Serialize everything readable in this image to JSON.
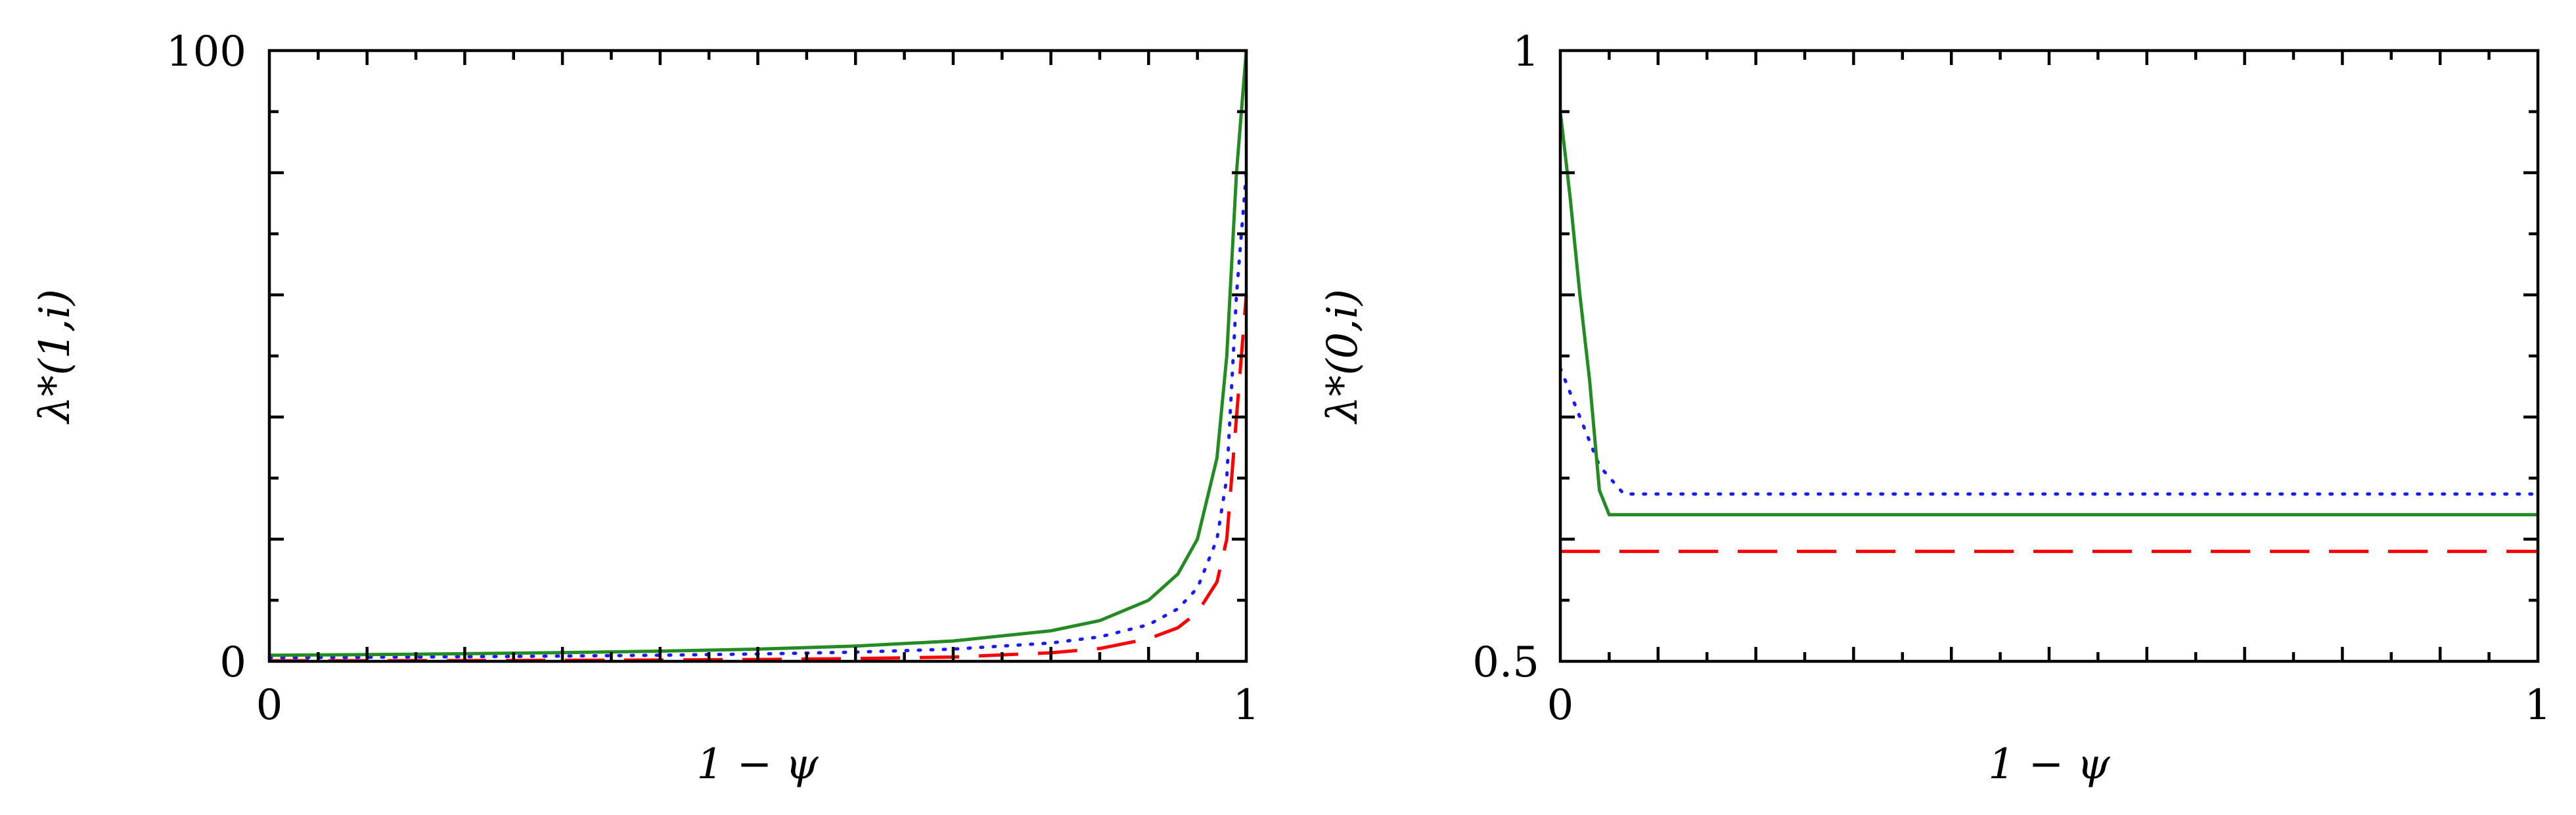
{
  "chart_data": [
    {
      "type": "line",
      "title": "",
      "xlabel": "1 − ψ",
      "ylabel": "λ*(1,i)",
      "xlim": [
        0,
        1
      ],
      "ylim": [
        0,
        100
      ],
      "x_ticks": [
        "0",
        "1"
      ],
      "y_ticks": [
        "0",
        "100"
      ],
      "grid": false,
      "series": [
        {
          "color": "#228b22",
          "style": "solid",
          "points": [
            [
              0,
              1
            ],
            [
              0.1,
              1.1
            ],
            [
              0.2,
              1.25
            ],
            [
              0.3,
              1.43
            ],
            [
              0.4,
              1.67
            ],
            [
              0.5,
              2
            ],
            [
              0.6,
              2.5
            ],
            [
              0.7,
              3.33
            ],
            [
              0.8,
              5
            ],
            [
              0.85,
              6.67
            ],
            [
              0.9,
              10
            ],
            [
              0.93,
              14.3
            ],
            [
              0.95,
              20
            ],
            [
              0.97,
              33.3
            ],
            [
              0.98,
              50
            ],
            [
              0.99,
              80
            ],
            [
              1.0,
              100
            ]
          ]
        },
        {
          "color": "#1a1aff",
          "style": "dotted",
          "points": [
            [
              0,
              0.6
            ],
            [
              0.1,
              0.67
            ],
            [
              0.2,
              0.75
            ],
            [
              0.3,
              0.86
            ],
            [
              0.4,
              1
            ],
            [
              0.5,
              1.2
            ],
            [
              0.6,
              1.5
            ],
            [
              0.7,
              2
            ],
            [
              0.8,
              3
            ],
            [
              0.85,
              4
            ],
            [
              0.9,
              6
            ],
            [
              0.93,
              8.6
            ],
            [
              0.95,
              12
            ],
            [
              0.97,
              20
            ],
            [
              0.98,
              30
            ],
            [
              0.99,
              60
            ],
            [
              1.0,
              80
            ]
          ]
        },
        {
          "color": "#ff0000",
          "style": "dashed",
          "points": [
            [
              0,
              0.1
            ],
            [
              0.1,
              0.11
            ],
            [
              0.2,
              0.13
            ],
            [
              0.3,
              0.17
            ],
            [
              0.4,
              0.22
            ],
            [
              0.5,
              0.3
            ],
            [
              0.6,
              0.45
            ],
            [
              0.7,
              0.7
            ],
            [
              0.8,
              1.4
            ],
            [
              0.85,
              2.1
            ],
            [
              0.9,
              3.7
            ],
            [
              0.93,
              5.5
            ],
            [
              0.95,
              8
            ],
            [
              0.97,
              13
            ],
            [
              0.98,
              20
            ],
            [
              0.99,
              40
            ],
            [
              1.0,
              60
            ]
          ]
        }
      ]
    },
    {
      "type": "line",
      "title": "",
      "xlabel": "1 − ψ",
      "ylabel": "λ*(0,i)",
      "xlim": [
        0,
        1
      ],
      "ylim": [
        0.5,
        1
      ],
      "x_ticks": [
        "0",
        "1"
      ],
      "y_ticks": [
        "0.5",
        "1"
      ],
      "grid": false,
      "series": [
        {
          "color": "#228b22",
          "style": "solid",
          "points": [
            [
              0,
              0.95
            ],
            [
              0.01,
              0.88
            ],
            [
              0.02,
              0.8
            ],
            [
              0.03,
              0.73
            ],
            [
              0.04,
              0.64
            ],
            [
              0.05,
              0.62
            ],
            [
              1.0,
              0.62
            ]
          ]
        },
        {
          "color": "#1a1aff",
          "style": "dotted",
          "points": [
            [
              0,
              0.74
            ],
            [
              0.02,
              0.7
            ],
            [
              0.04,
              0.66
            ],
            [
              0.065,
              0.637
            ],
            [
              1.0,
              0.637
            ]
          ]
        },
        {
          "color": "#ff0000",
          "style": "dashed",
          "points": [
            [
              0,
              0.59
            ],
            [
              1.0,
              0.59
            ]
          ]
        }
      ]
    }
  ]
}
